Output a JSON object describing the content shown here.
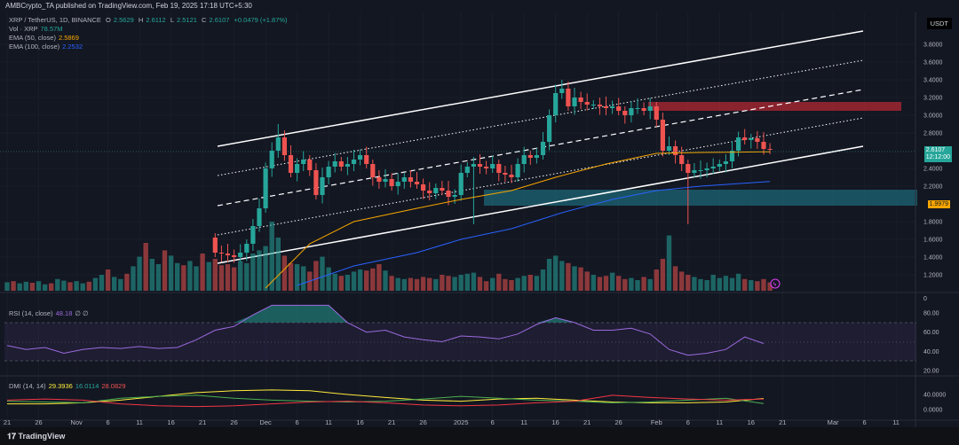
{
  "header": {
    "publisher": "AMBCrypto_TA published on TradingView.com, Feb 19, 2025 17:18 UTC+5:30"
  },
  "legend": {
    "symbol": "XRP / TetherUS, 1D, BINANCE",
    "o_label": "O",
    "o": "2.5629",
    "h_label": "H",
    "h": "2.6112",
    "l_label": "L",
    "l": "2.5121",
    "c_label": "C",
    "c": "2.6107",
    "change": "+0.0479 (+1.87%)",
    "vol_label": "Vol · XRP",
    "vol": "78.57M",
    "ema50_label": "EMA (50, close)",
    "ema50": "2.5869",
    "ema100_label": "EMA (100, close)",
    "ema100": "2.2532",
    "rsi_label": "RSI (14, close)",
    "rsi": "48.18",
    "rsi_extra": "∅ ∅",
    "dmi_label": "DMI (14, 14)",
    "adx": "29.3936",
    "plus_di": "16.0114",
    "minus_di": "28.0829"
  },
  "axis": {
    "currency": "USDT",
    "last_price": "2.6107",
    "countdown": "12:12:00",
    "level_tag": "1.9979",
    "price_ticks": [
      "3.8000",
      "3.6000",
      "3.4000",
      "3.2000",
      "3.0000",
      "2.8000",
      "2.4000",
      "2.2000",
      "1.8000",
      "1.6000",
      "1.4000",
      "1.2000"
    ],
    "vol_tick": "0",
    "rsi_ticks": [
      "80.00",
      "60.00",
      "40.00",
      "20.00"
    ],
    "dmi_ticks": [
      "40.0000",
      "0.0000"
    ]
  },
  "footer": {
    "brand": "TradingView"
  },
  "colors": {
    "up": "#26a69a",
    "down": "#ef5350",
    "ema50": "#f7a600",
    "ema100": "#2962ff",
    "rsi": "#9c6ade"
  },
  "chart_data": {
    "type": "candlestick",
    "title": "XRP / TetherUS, 1D, BINANCE",
    "start_date": "2024-10-21",
    "end_date": "2025-02-19",
    "x_ticks": [
      {
        "d": 0,
        "t": "21"
      },
      {
        "d": 5,
        "t": "26"
      },
      {
        "d": 11,
        "t": "Nov"
      },
      {
        "d": 16,
        "t": "6"
      },
      {
        "d": 21,
        "t": "11"
      },
      {
        "d": 26,
        "t": "16"
      },
      {
        "d": 31,
        "t": "21"
      },
      {
        "d": 36,
        "t": "26"
      },
      {
        "d": 41,
        "t": "Dec"
      },
      {
        "d": 46,
        "t": "6"
      },
      {
        "d": 51,
        "t": "11"
      },
      {
        "d": 56,
        "t": "16"
      },
      {
        "d": 61,
        "t": "21"
      },
      {
        "d": 66,
        "t": "26"
      },
      {
        "d": 72,
        "t": "2025"
      },
      {
        "d": 77,
        "t": "6"
      },
      {
        "d": 82,
        "t": "11"
      },
      {
        "d": 87,
        "t": "16"
      },
      {
        "d": 92,
        "t": "21"
      },
      {
        "d": 97,
        "t": "26"
      },
      {
        "d": 103,
        "t": "Feb"
      },
      {
        "d": 108,
        "t": "6"
      },
      {
        "d": 113,
        "t": "11"
      },
      {
        "d": 118,
        "t": "16"
      },
      {
        "d": 123,
        "t": "21"
      },
      {
        "d": 131,
        "t": "Mar"
      },
      {
        "d": 136,
        "t": "6"
      },
      {
        "d": 141,
        "t": "11"
      }
    ],
    "candle_start_index": 33,
    "closes": [
      1.45,
      1.44,
      1.42,
      1.4,
      1.45,
      1.55,
      1.75,
      1.95,
      2.4,
      2.6,
      2.75,
      2.55,
      2.35,
      2.45,
      2.5,
      2.38,
      2.1,
      2.3,
      2.42,
      2.48,
      2.42,
      2.45,
      2.5,
      2.55,
      2.45,
      2.3,
      2.25,
      2.28,
      2.2,
      2.25,
      2.3,
      2.25,
      2.22,
      2.15,
      2.12,
      2.18,
      2.15,
      2.08,
      2.1,
      2.35,
      2.42,
      2.45,
      2.42,
      2.4,
      2.45,
      2.35,
      2.33,
      2.3,
      2.45,
      2.55,
      2.52,
      2.55,
      2.7,
      3.0,
      3.25,
      3.3,
      3.1,
      3.2,
      3.15,
      3.12,
      3.12,
      3.1,
      3.08,
      3.1,
      3.05,
      3.0,
      3.08,
      3.08,
      3.05,
      3.1,
      2.95,
      2.6,
      2.65,
      2.55,
      2.45,
      2.35,
      2.38,
      2.38,
      2.4,
      2.42,
      2.45,
      2.48,
      2.6,
      2.75,
      2.72,
      2.74,
      2.7,
      2.62,
      2.6107
    ],
    "first_open": 1.62,
    "notable_wicks": {
      "43": {
        "high": 2.9
      },
      "74": {
        "low": 1.77
      },
      "108": {
        "low": 1.77
      },
      "88": {
        "high": 3.4
      },
      "43b": {}
    },
    "volume_millions": [
      80,
      90,
      70,
      85,
      75,
      90,
      60,
      70,
      110,
      95,
      80,
      90,
      70,
      85,
      120,
      150,
      200,
      130,
      110,
      160,
      230,
      320,
      450,
      300,
      250,
      380,
      330,
      260,
      240,
      280,
      230,
      350,
      270,
      300,
      240,
      250,
      220,
      280,
      260,
      350,
      380,
      420,
      650,
      500,
      330,
      260,
      250,
      230,
      180,
      280,
      320,
      220,
      160,
      140,
      150,
      180,
      200,
      190,
      210,
      250,
      190,
      140,
      120,
      110,
      120,
      110,
      130,
      120,
      110,
      150,
      140,
      130,
      150,
      160,
      170,
      130,
      90,
      120,
      160,
      110,
      100,
      120,
      140,
      150,
      140,
      200,
      300,
      330,
      280,
      260,
      230,
      220,
      180,
      150,
      130,
      140,
      170,
      140,
      110,
      120,
      100,
      130,
      110,
      200,
      300,
      520,
      230,
      180,
      150,
      130,
      110,
      100,
      150,
      120,
      140,
      120,
      160,
      110,
      100,
      90,
      110,
      78.57
    ],
    "ema50": [
      [
        41,
        1.05
      ],
      [
        48,
        1.55
      ],
      [
        55,
        1.8
      ],
      [
        65,
        1.95
      ],
      [
        72,
        2.05
      ],
      [
        80,
        2.15
      ],
      [
        87,
        2.3
      ],
      [
        95,
        2.45
      ],
      [
        103,
        2.57
      ],
      [
        110,
        2.58
      ],
      [
        121,
        2.5869
      ]
    ],
    "ema100": [
      [
        46,
        1.08
      ],
      [
        55,
        1.3
      ],
      [
        65,
        1.45
      ],
      [
        72,
        1.6
      ],
      [
        80,
        1.72
      ],
      [
        88,
        1.9
      ],
      [
        96,
        2.05
      ],
      [
        103,
        2.15
      ],
      [
        110,
        2.2
      ],
      [
        121,
        2.2532
      ]
    ],
    "rsi_step_days": 3,
    "rsi": [
      46,
      42,
      44,
      38,
      42,
      44,
      43,
      45,
      43,
      44,
      52,
      62,
      66,
      78,
      88,
      88,
      88,
      88,
      70,
      60,
      62,
      55,
      52,
      50,
      56,
      55,
      53,
      58,
      68,
      75,
      70,
      62,
      62,
      64,
      58,
      42,
      36,
      38,
      42,
      55,
      48.18
    ],
    "dmi_step_days": 6,
    "adx": [
      15,
      15,
      18,
      25,
      35,
      45,
      50,
      52,
      50,
      40,
      32,
      25,
      22,
      28,
      30,
      25,
      20,
      18,
      18,
      20,
      29.39
    ],
    "plus_di": [
      22,
      20,
      18,
      30,
      35,
      38,
      30,
      25,
      22,
      20,
      22,
      28,
      35,
      30,
      25,
      22,
      18,
      20,
      25,
      30,
      16.01
    ],
    "minus_di": [
      25,
      28,
      25,
      15,
      10,
      8,
      10,
      15,
      20,
      22,
      18,
      12,
      10,
      12,
      18,
      22,
      38,
      32,
      28,
      25,
      28.08
    ],
    "zones": [
      {
        "name": "resistance",
        "price_range": [
          3.05,
          3.15
        ]
      },
      {
        "name": "support",
        "price_range": [
          2.0,
          2.16
        ]
      }
    ],
    "price_ylim": [
      1.0,
      3.95
    ],
    "rsi_ylim": [
      20,
      80
    ],
    "rsi_bands": [
      70,
      30
    ]
  }
}
